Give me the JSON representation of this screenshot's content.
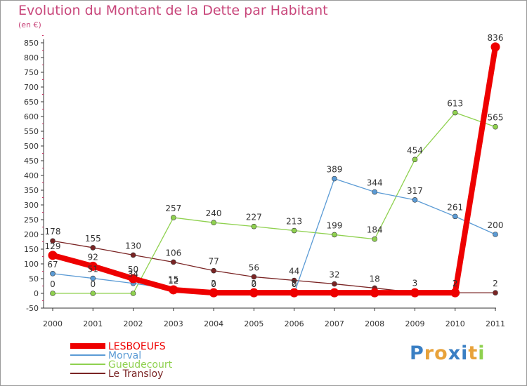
{
  "chart_data": {
    "type": "line",
    "title": "Evolution du Montant de la Dette par Habitant",
    "subtitle": "(en €)",
    "x": [
      "2000",
      "2001",
      "2002",
      "2003",
      "2004",
      "2005",
      "2006",
      "2007",
      "2008",
      "2009",
      "2010",
      "2011"
    ],
    "yticks": [
      "-50",
      "0",
      "50",
      "100",
      "150",
      "200",
      "250",
      "300",
      "350",
      "400",
      "450",
      "500",
      "550",
      "600",
      "650",
      "700",
      "750",
      "800",
      "850"
    ],
    "ylim": [
      -50,
      850
    ],
    "grid": false,
    "legend_position": "bottom-left",
    "series": [
      {
        "name": "LESBOEUFS",
        "color": "#ee0000",
        "values": [
          129,
          92,
          50,
          12,
          2,
          2,
          2,
          2,
          2,
          2,
          2,
          836
        ],
        "labels": [
          "129",
          "92",
          "50",
          "12",
          "2",
          "2",
          "2",
          "",
          "",
          "",
          "2",
          "836"
        ]
      },
      {
        "name": "Morval",
        "color": "#5b9bd5",
        "values": [
          67,
          51,
          34,
          15,
          0,
          0,
          0,
          389,
          344,
          317,
          261,
          200
        ],
        "labels": [
          "67",
          "51",
          "34",
          "15",
          "0",
          "0",
          "0",
          "389",
          "344",
          "317",
          "261",
          "200"
        ]
      },
      {
        "name": "Gueudecourt",
        "color": "#8fd14f",
        "values": [
          0,
          0,
          0,
          257,
          240,
          227,
          213,
          199,
          184,
          454,
          613,
          565
        ],
        "labels": [
          "0",
          "0",
          "",
          "257",
          "240",
          "227",
          "213",
          "199",
          "184",
          "454",
          "613",
          "565"
        ]
      },
      {
        "name": "Le Transloy",
        "color": "#7a2424",
        "values": [
          178,
          155,
          130,
          106,
          77,
          56,
          44,
          32,
          18,
          3,
          2,
          2
        ],
        "labels": [
          "178",
          "155",
          "130",
          "106",
          "77",
          "56",
          "44",
          "32",
          "18",
          "3",
          "2",
          "2"
        ]
      }
    ]
  },
  "logo": {
    "letters": [
      "P",
      "r",
      "o",
      "x",
      "i",
      "t",
      "i"
    ],
    "colors": [
      "#3a7fc4",
      "#e8a23a",
      "#e8a23a",
      "#3a7fc4",
      "#3a7fc4",
      "#e8a23a",
      "#8fd14f"
    ]
  }
}
